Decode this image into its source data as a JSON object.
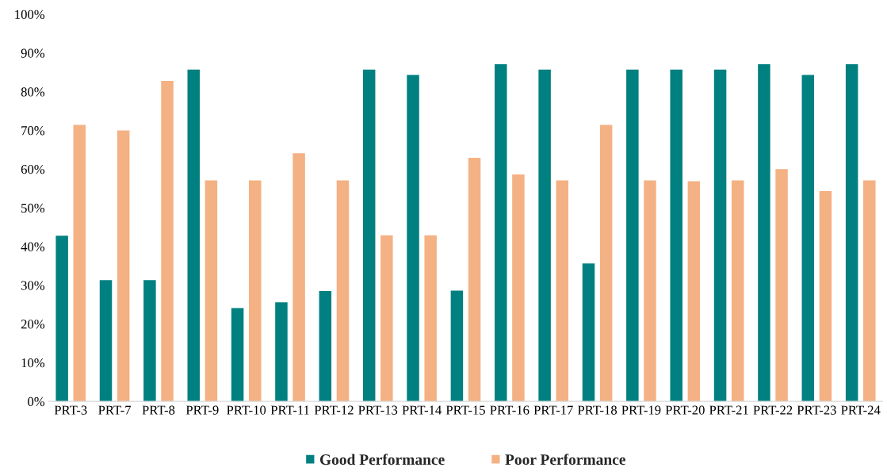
{
  "chart_data": {
    "type": "bar",
    "categories": [
      "PRT-3",
      "PRT-7",
      "PRT-8",
      "PRT-9",
      "PRT-10",
      "PRT-11",
      "PRT-12",
      "PRT-13",
      "PRT-14",
      "PRT-15",
      "PRT-16",
      "PRT-17",
      "PRT-18",
      "PRT-19",
      "PRT-20",
      "PRT-21",
      "PRT-22",
      "PRT-23",
      "PRT-24"
    ],
    "series": [
      {
        "name": "Good Performance",
        "color": "#008080",
        "values": [
          42.8,
          31.3,
          31.3,
          85.7,
          24.1,
          25.6,
          28.5,
          85.7,
          84.3,
          28.6,
          87.1,
          85.7,
          35.6,
          85.7,
          85.7,
          85.7,
          87.1,
          84.3,
          87.1
        ]
      },
      {
        "name": "Poor Performance",
        "color": "#f4b183",
        "values": [
          71.4,
          70.0,
          82.8,
          57.1,
          57.1,
          64.1,
          57.1,
          42.9,
          42.9,
          62.9,
          58.6,
          57.1,
          71.4,
          57.1,
          56.9,
          57.1,
          60.0,
          54.3,
          57.1
        ]
      }
    ],
    "ylim": [
      0,
      100
    ],
    "yticks": [
      {
        "value": 0,
        "label": "0%"
      },
      {
        "value": 10,
        "label": "10%"
      },
      {
        "value": 20,
        "label": "20%"
      },
      {
        "value": 30,
        "label": "30%"
      },
      {
        "value": 40,
        "label": "40%"
      },
      {
        "value": 50,
        "label": "50%"
      },
      {
        "value": 60,
        "label": "60%"
      },
      {
        "value": 70,
        "label": "70%"
      },
      {
        "value": 80,
        "label": "80%"
      },
      {
        "value": 90,
        "label": "90%"
      },
      {
        "value": 100,
        "label": "100%"
      }
    ],
    "grid": false,
    "legend": "bottom"
  }
}
